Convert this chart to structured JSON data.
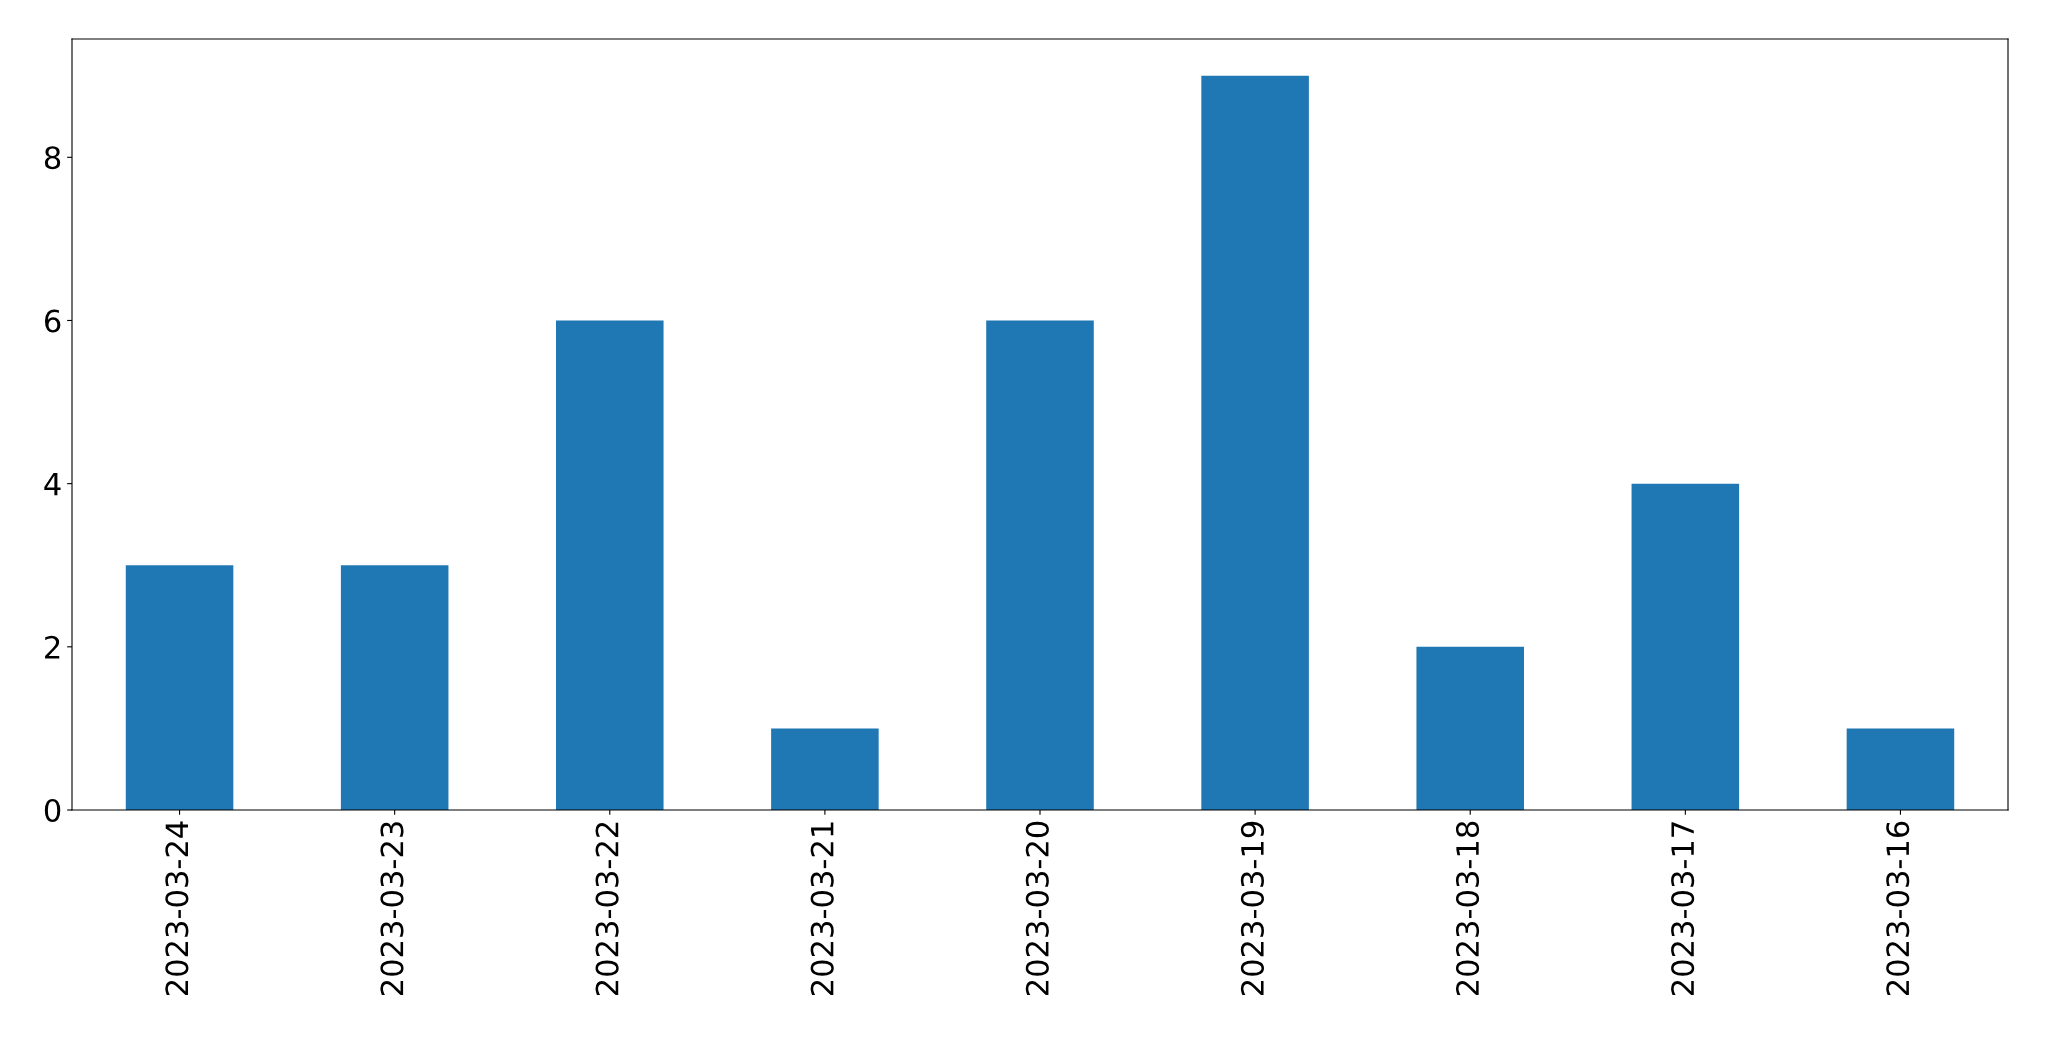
{
  "chart_data": {
    "type": "bar",
    "categories": [
      "2023-03-24",
      "2023-03-23",
      "2023-03-22",
      "2023-03-21",
      "2023-03-20",
      "2023-03-19",
      "2023-03-18",
      "2023-03-17",
      "2023-03-16"
    ],
    "values": [
      3,
      3,
      6,
      1,
      6,
      9,
      2,
      4,
      1
    ],
    "color": "#1f77b4",
    "ylim": [
      0,
      9.45
    ],
    "yticks": [
      0,
      2,
      4,
      6,
      8
    ],
    "grid": false,
    "legend": false
  }
}
